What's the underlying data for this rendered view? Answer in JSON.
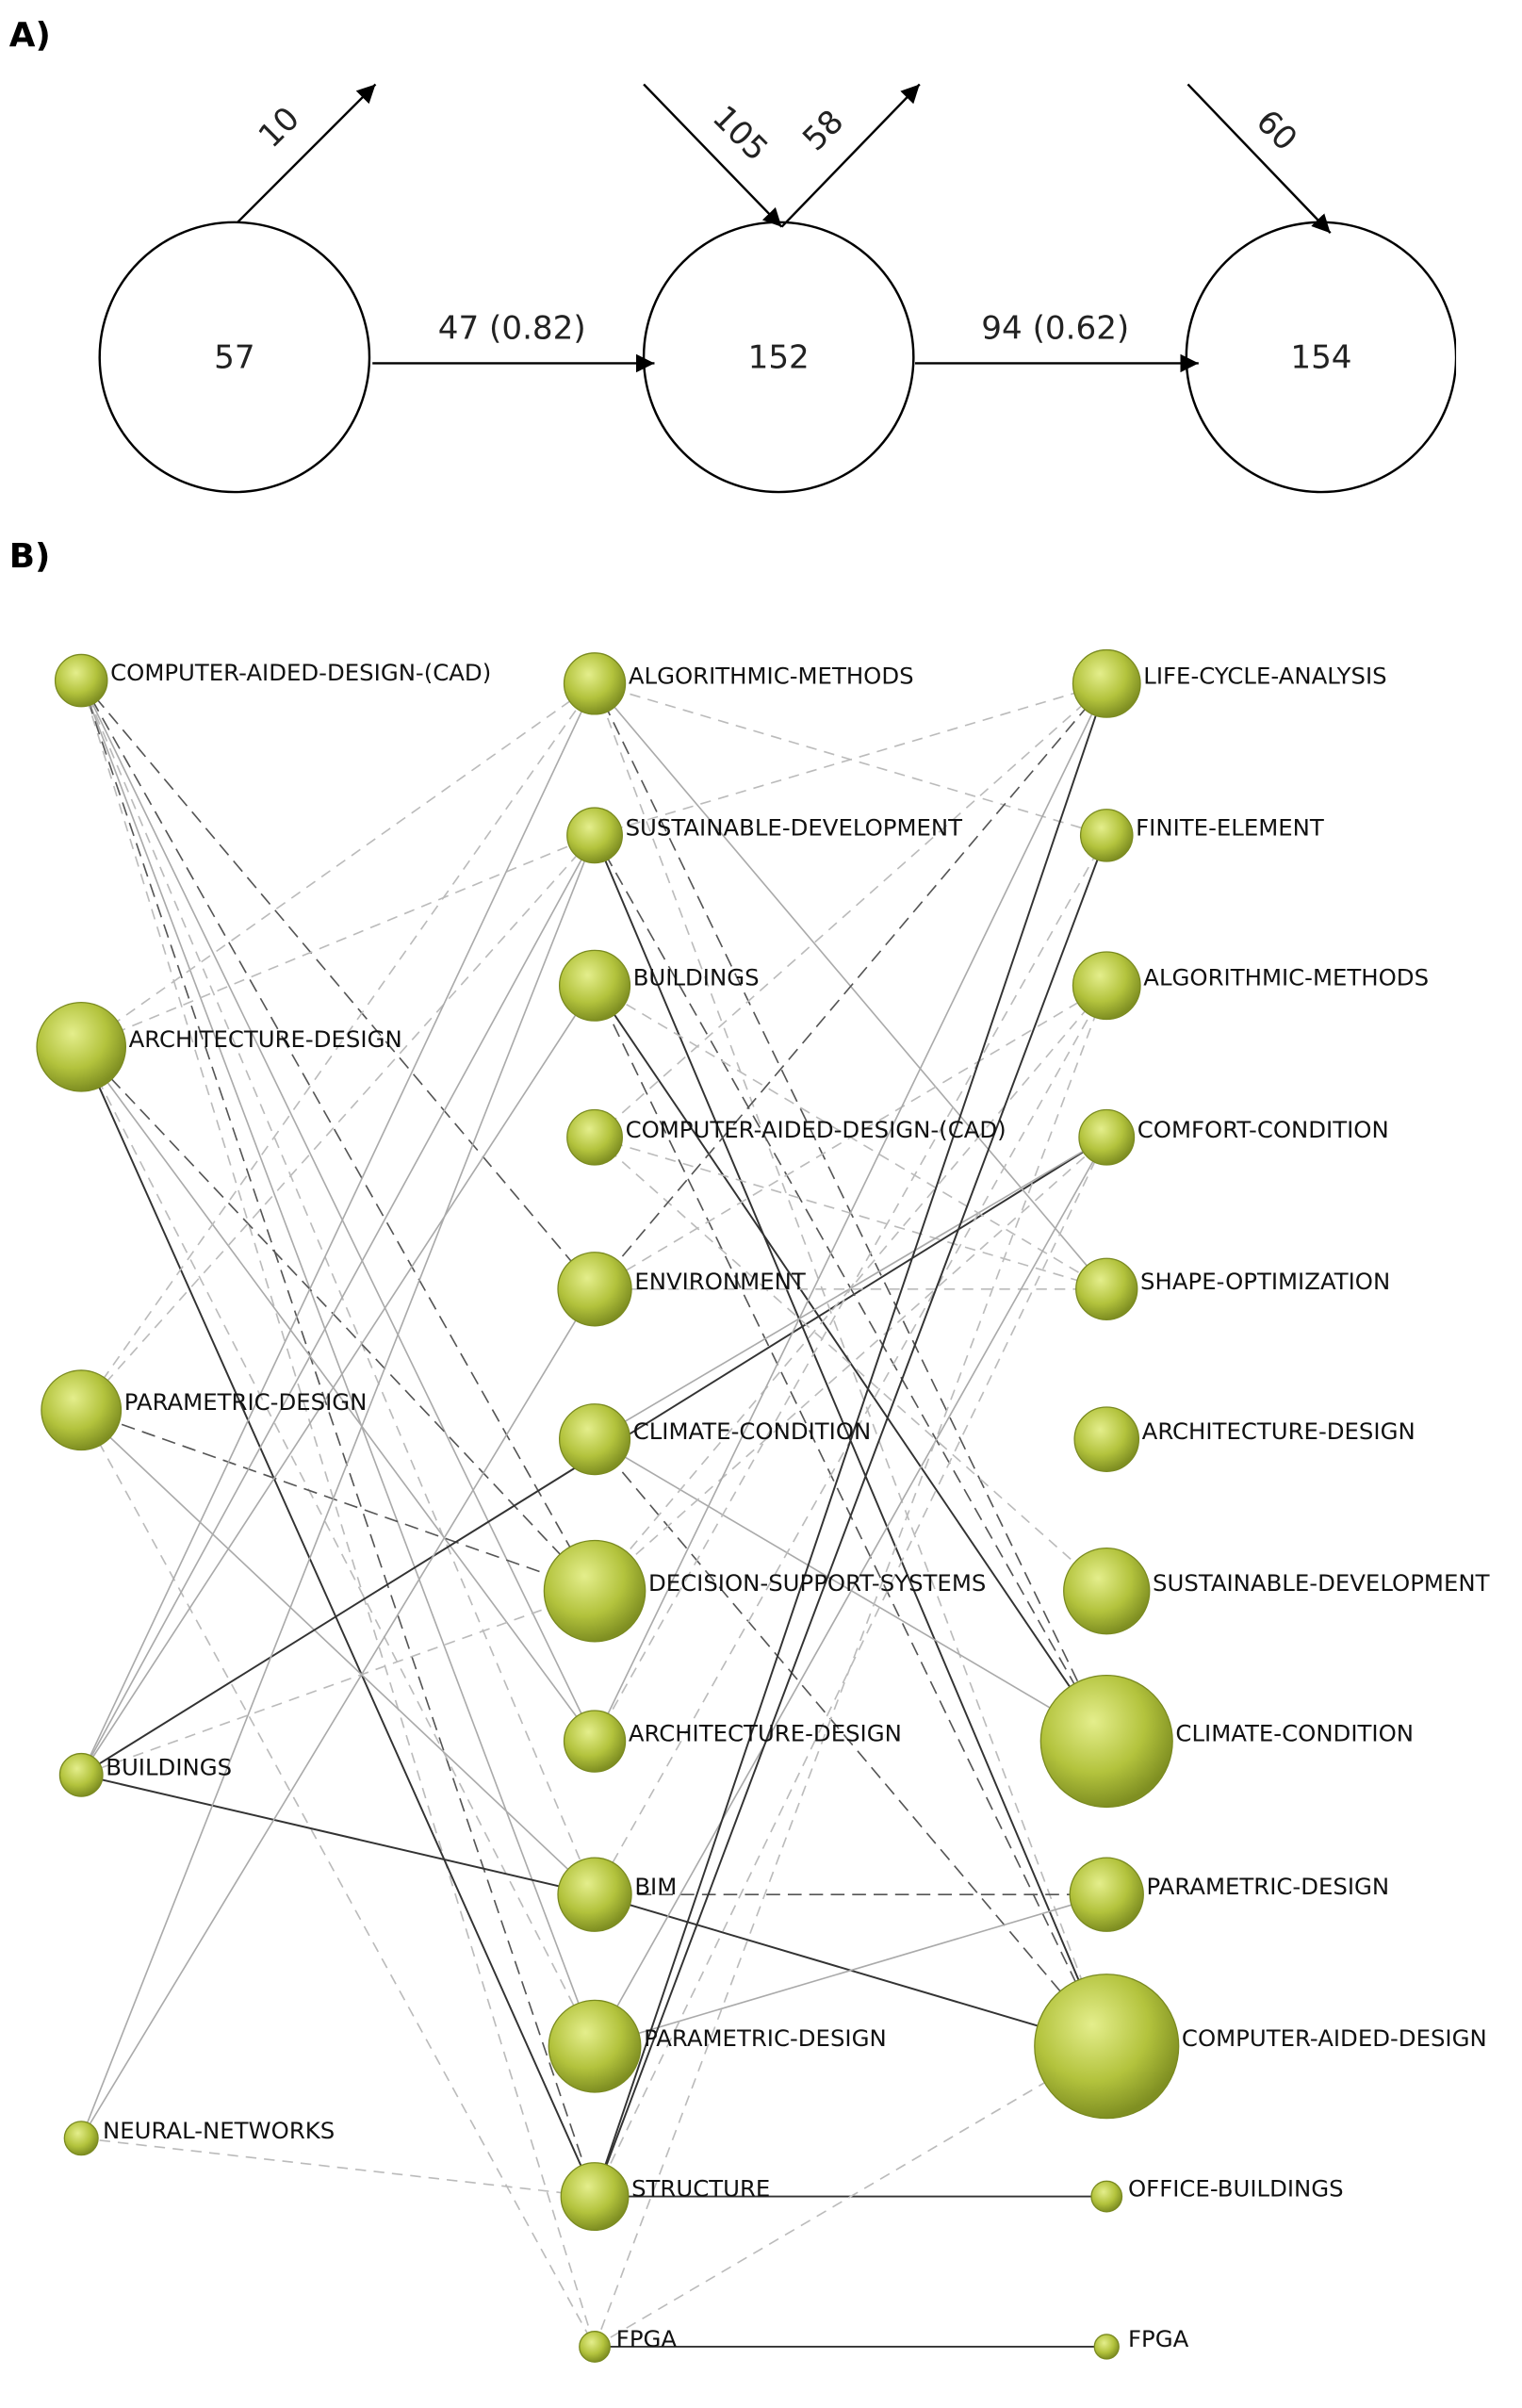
{
  "panel_a": {
    "label": "A)",
    "nodes": [
      57,
      152,
      154
    ],
    "transitions": [
      "47 (0.82)",
      "94 (0.62)"
    ],
    "external": [
      10,
      105,
      58,
      60
    ]
  },
  "panel_b": {
    "label": "B)",
    "columns": [
      [
        "COMPUTER-AIDED-DESIGN-(CAD)",
        "ARCHITECTURE-DESIGN",
        "PARAMETRIC-DESIGN",
        "BUILDINGS",
        "NEURAL-NETWORKS"
      ],
      [
        "ALGORITHMIC-METHODS",
        "SUSTAINABLE-DEVELOPMENT",
        "BUILDINGS",
        "COMPUTER-AIDED-DESIGN-(CAD)",
        "ENVIRONMENT",
        "CLIMATE-CONDITION",
        "DECISION-SUPPORT-SYSTEMS",
        "ARCHITECTURE-DESIGN",
        "BIM",
        "PARAMETRIC-DESIGN",
        "STRUCTURE",
        "FPGA"
      ],
      [
        "LIFE-CYCLE-ANALYSIS",
        "FINITE-ELEMENT",
        "ALGORITHMIC-METHODS",
        "COMFORT-CONDITION",
        "SHAPE-OPTIMIZATION",
        "ARCHITECTURE-DESIGN",
        "SUSTAINABLE-DEVELOPMENT",
        "CLIMATE-CONDITION",
        "PARAMETRIC-DESIGN",
        "COMPUTER-AIDED-DESIGN",
        "OFFICE-BUILDINGS",
        "FPGA"
      ]
    ]
  }
}
